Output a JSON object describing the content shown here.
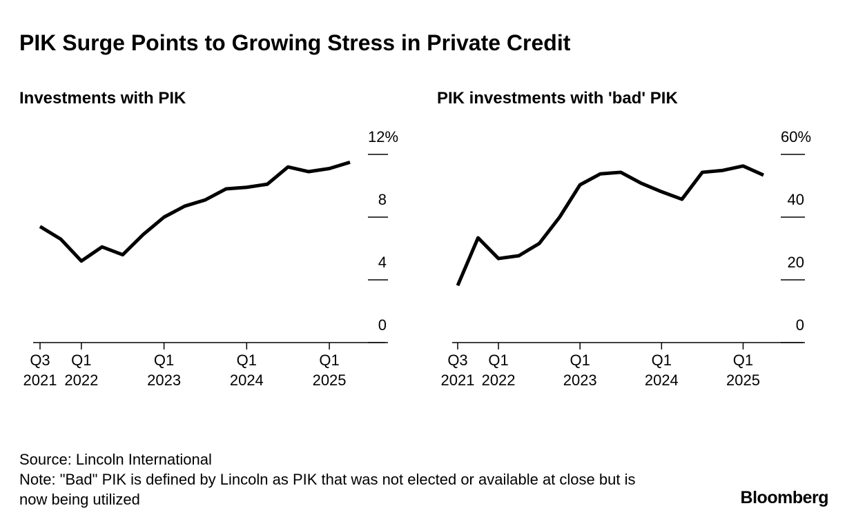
{
  "title": "PIK Surge Points to Growing Stress in Private Credit",
  "chart_data": [
    {
      "type": "line",
      "title": "Investments with PIK",
      "categories": [
        "Q3 2021",
        null,
        "Q1 2022",
        null,
        null,
        null,
        "Q1 2023",
        null,
        null,
        null,
        "Q1 2024",
        null,
        null,
        null,
        "Q1 2025",
        null
      ],
      "values": [
        7.4,
        6.6,
        5.2,
        6.1,
        5.6,
        6.9,
        8.0,
        8.7,
        9.1,
        9.8,
        9.9,
        10.1,
        11.2,
        10.9,
        11.1,
        11.5
      ],
      "color": "#000000",
      "ylim": [
        0,
        12
      ],
      "yticks": [
        0,
        4,
        8,
        {
          "value": 12,
          "label": "12%"
        }
      ]
    },
    {
      "type": "line",
      "title": "PIK investments with 'bad' PIK",
      "categories": [
        "Q3 2021",
        null,
        "Q1 2022",
        null,
        null,
        null,
        "Q1 2023",
        null,
        null,
        null,
        "Q1 2024",
        null,
        null,
        null,
        "Q1 2025",
        null
      ],
      "values": [
        18.2,
        33.4,
        26.8,
        27.7,
        31.6,
        40.0,
        50.3,
        53.8,
        54.3,
        50.8,
        48.1,
        45.7,
        54.3,
        54.9,
        56.3,
        53.4
      ],
      "color": "#000000",
      "ylim": [
        0,
        60
      ],
      "yticks": [
        0,
        20,
        40,
        {
          "value": 60,
          "label": "60%"
        }
      ]
    }
  ],
  "source": "Source: Lincoln International",
  "note": "Note: \"Bad\" PIK is defined by Lincoln as PIK that was not elected or available at close but is now being utilized",
  "logo": "Bloomberg"
}
